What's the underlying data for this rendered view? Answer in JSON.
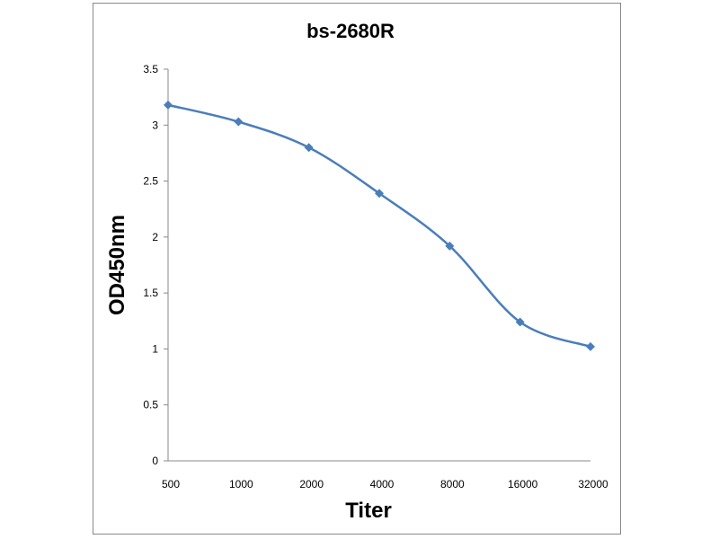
{
  "chart_data": {
    "type": "line",
    "title": "bs-2680R",
    "xlabel": "Titer",
    "ylabel": "OD450nm",
    "categories": [
      "500",
      "1000",
      "2000",
      "4000",
      "8000",
      "16000",
      "32000"
    ],
    "series": [
      {
        "values": [
          3.18,
          3.03,
          2.8,
          2.39,
          1.92,
          1.24,
          1.02
        ],
        "color": "#4a7ebb",
        "marker": "diamond",
        "smooth": true
      }
    ],
    "ylim": [
      0,
      3.5
    ],
    "yticks": [
      "0",
      "0.5",
      "1",
      "1.5",
      "2",
      "2.5",
      "3",
      "3.5"
    ],
    "grid": false,
    "legend": "none"
  }
}
